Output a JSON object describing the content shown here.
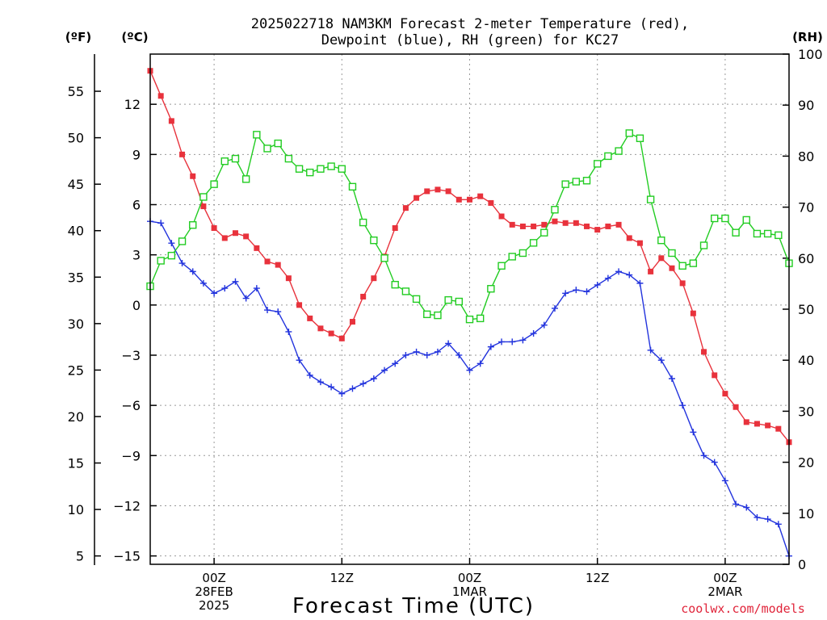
{
  "chart_data": {
    "type": "line",
    "title_line1": "2025022718 NAM3KM Forecast 2-meter Temperature (red),",
    "title_line2": "Dewpoint (blue), RH (green) for KC27",
    "left_unit_f": "(ºF)",
    "left_unit_c": "(ºC)",
    "right_unit": "(RH)",
    "xlabel": "Forecast Time (UTC)",
    "credit": "coolwx.com/models",
    "x_start_hour": 18,
    "x_end_hour": 78,
    "celsius_range": [
      -15.5,
      15
    ],
    "rh_range": [
      0,
      100
    ],
    "fahrenheit_ticks": [
      "5",
      "10",
      "15",
      "20",
      "25",
      "30",
      "35",
      "40",
      "45",
      "50",
      "55"
    ],
    "celsius_ticks": [
      "−15",
      "−12",
      "−9",
      "−6",
      "−3",
      "0",
      "3",
      "6",
      "9",
      "12"
    ],
    "rh_ticks": [
      "0",
      "10",
      "20",
      "30",
      "40",
      "50",
      "60",
      "70",
      "80",
      "90",
      "100"
    ],
    "x_ticks": [
      {
        "hour": 24,
        "lines": [
          "00Z",
          "28FEB",
          "2025"
        ]
      },
      {
        "hour": 36,
        "lines": [
          "12Z"
        ]
      },
      {
        "hour": 48,
        "lines": [
          "00Z",
          "1MAR"
        ]
      },
      {
        "hour": 60,
        "lines": [
          "12Z"
        ]
      },
      {
        "hour": 72,
        "lines": [
          "00Z",
          "2MAR"
        ]
      }
    ],
    "series": [
      {
        "key": "temperature",
        "color": "#e8323c",
        "marker": "filled-square",
        "axis": "celsius",
        "values": [
          14,
          12.5,
          11,
          9,
          7.7,
          5.9,
          4.6,
          4.0,
          4.3,
          4.1,
          3.4,
          2.6,
          2.4,
          1.6,
          0.0,
          -0.8,
          -1.4,
          -1.7,
          -2.0,
          -1.0,
          0.5,
          1.6,
          2.9,
          4.6,
          5.8,
          6.4,
          6.8,
          6.9,
          6.8,
          6.3,
          6.3,
          6.5,
          6.1,
          5.3,
          4.8,
          4.7,
          4.7,
          4.8,
          5.0,
          4.9,
          4.9,
          4.7,
          4.5,
          4.7,
          4.8,
          4.0,
          3.7,
          2.0,
          2.8,
          2.2,
          1.3,
          -0.5,
          -2.8,
          -4.2,
          -5.3,
          -6.1,
          -7.0,
          -7.1,
          -7.2,
          -7.4,
          -8.2
        ]
      },
      {
        "key": "dewpoint",
        "color": "#2233dd",
        "marker": "plus",
        "axis": "celsius",
        "values": [
          5.0,
          4.9,
          3.7,
          2.5,
          2.0,
          1.3,
          0.7,
          1.0,
          1.4,
          0.4,
          1.0,
          -0.3,
          -0.4,
          -1.6,
          -3.3,
          -4.2,
          -4.6,
          -4.9,
          -5.3,
          -5.0,
          -4.7,
          -4.4,
          -3.9,
          -3.5,
          -3.0,
          -2.8,
          -3.0,
          -2.8,
          -2.3,
          -3.0,
          -3.9,
          -3.5,
          -2.5,
          -2.2,
          -2.2,
          -2.1,
          -1.7,
          -1.2,
          -0.2,
          0.7,
          0.9,
          0.8,
          1.2,
          1.6,
          2.0,
          1.8,
          1.3,
          -2.7,
          -3.3,
          -4.4,
          -6.0,
          -7.6,
          -9.0,
          -9.4,
          -10.5,
          -11.9,
          -12.1,
          -12.7,
          -12.8,
          -13.1,
          -15.0
        ]
      },
      {
        "key": "rh",
        "color": "#22cc22",
        "marker": "open-square",
        "axis": "rh",
        "values": [
          54.5,
          59.5,
          60.5,
          63.3,
          66.5,
          72.0,
          74.5,
          79.0,
          79.5,
          75.5,
          84.2,
          81.5,
          82.5,
          79.5,
          77.5,
          76.8,
          77.5,
          78.0,
          77.5,
          74.0,
          67.0,
          63.5,
          60.0,
          54.8,
          53.5,
          52.0,
          49.0,
          48.8,
          51.8,
          51.5,
          48.0,
          48.2,
          54.0,
          58.5,
          60.3,
          61.0,
          63.0,
          65.0,
          69.5,
          74.5,
          75.0,
          75.2,
          78.5,
          80.0,
          81.0,
          84.5,
          83.5,
          71.5,
          63.5,
          61.0,
          58.5,
          59.0,
          62.5,
          67.8,
          67.8,
          65.0,
          67.5,
          64.8,
          64.8,
          64.5,
          59.0
        ]
      }
    ]
  }
}
